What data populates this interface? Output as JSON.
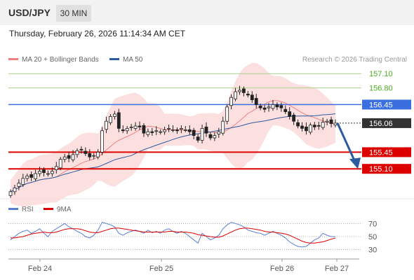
{
  "header": {
    "symbol": "USD/JPY",
    "timeframe": "30 MIN"
  },
  "timestamp": "Thursday, February 26, 2026 11:14:34 AM CET",
  "legend": {
    "ma20_label": "MA 20 + Bollinger Bands",
    "ma20_color": "#f08080",
    "ma50_label": "MA 50",
    "ma50_color": "#2c5aa0"
  },
  "copyright": "Research © 2026 Trading Central",
  "rsi_legend": {
    "rsi_label": "RSI",
    "rsi_color": "#5b7fd8",
    "ma_label": "9MA",
    "ma_color": "#e00000"
  },
  "chart_data": [
    {
      "type": "candlestick",
      "ylim": [
        154.5,
        157.25
      ],
      "x_ticks": [
        "Feb 24",
        "Feb 25",
        "Feb 26",
        "Feb 27"
      ],
      "levels": [
        {
          "label": "157.10",
          "value": 157.1,
          "kind": "resistance",
          "color": "#4caf20"
        },
        {
          "label": "156.80",
          "value": 156.8,
          "kind": "resistance",
          "color": "#4caf20"
        },
        {
          "label": "156.45",
          "value": 156.45,
          "kind": "pivot",
          "color": "#3b6fe0"
        },
        {
          "label": "156.06",
          "value": 156.06,
          "kind": "last_price",
          "color": "#333333"
        },
        {
          "label": "155.45",
          "value": 155.45,
          "kind": "support",
          "color": "#dd0000"
        },
        {
          "label": "155.10",
          "value": 155.1,
          "kind": "support",
          "color": "#dd0000"
        }
      ],
      "closes": [
        154.62,
        154.7,
        154.8,
        154.9,
        154.95,
        154.92,
        155.0,
        155.05,
        155.02,
        155.0,
        155.05,
        155.15,
        155.3,
        155.35,
        155.32,
        155.4,
        155.48,
        155.5,
        155.42,
        155.35,
        155.38,
        155.45,
        155.9,
        156.1,
        156.2,
        156.25,
        155.95,
        155.9,
        155.95,
        155.98,
        156.0,
        155.98,
        155.85,
        155.88,
        155.86,
        155.9,
        155.88,
        155.92,
        155.95,
        155.92,
        155.9,
        155.95,
        155.92,
        155.88,
        155.8,
        155.7,
        155.95,
        155.85,
        155.75,
        155.8,
        155.88,
        156.1,
        156.4,
        156.6,
        156.72,
        156.75,
        156.7,
        156.65,
        156.55,
        156.45,
        156.38,
        156.35,
        156.4,
        156.45,
        156.4,
        156.38,
        156.3,
        156.2,
        156.1,
        156.0,
        155.95,
        155.9,
        156.02,
        155.98,
        156.0,
        156.08,
        156.1,
        156.05,
        156.06
      ]
    },
    {
      "type": "line",
      "title": "RSI",
      "ylim": [
        20,
        80
      ],
      "y_ticks": [
        70,
        50,
        30
      ],
      "series": [
        {
          "name": "RSI",
          "values": [
            45,
            50,
            55,
            58,
            60,
            55,
            58,
            62,
            55,
            50,
            58,
            62,
            66,
            70,
            65,
            62,
            58,
            55,
            50,
            48,
            52,
            60,
            72,
            70,
            68,
            65,
            55,
            52,
            56,
            58,
            60,
            58,
            55,
            60,
            56,
            58,
            55,
            60,
            62,
            58,
            55,
            58,
            55,
            50,
            45,
            40,
            55,
            50,
            45,
            48,
            52,
            62,
            68,
            72,
            70,
            68,
            65,
            60,
            58,
            56,
            55,
            52,
            55,
            58,
            55,
            52,
            48,
            42,
            38,
            35,
            34,
            35,
            40,
            45,
            48,
            55,
            52,
            50,
            50
          ]
        },
        {
          "name": "9MA",
          "values": [
            48,
            48,
            49,
            50,
            52,
            54,
            55,
            56,
            57,
            56,
            56,
            57,
            59,
            61,
            62,
            62,
            62,
            61,
            59,
            57,
            56,
            56,
            58,
            60,
            62,
            63,
            63,
            62,
            61,
            60,
            59,
            58,
            57,
            57,
            57,
            57,
            57,
            57,
            58,
            58,
            57,
            57,
            57,
            56,
            55,
            53,
            52,
            51,
            50,
            49,
            49,
            51,
            54,
            57,
            60,
            62,
            63,
            63,
            62,
            61,
            60,
            58,
            57,
            57,
            56,
            55,
            54,
            52,
            49,
            46,
            43,
            41,
            40,
            40,
            41,
            42,
            44,
            46,
            48
          ]
        }
      ]
    }
  ]
}
